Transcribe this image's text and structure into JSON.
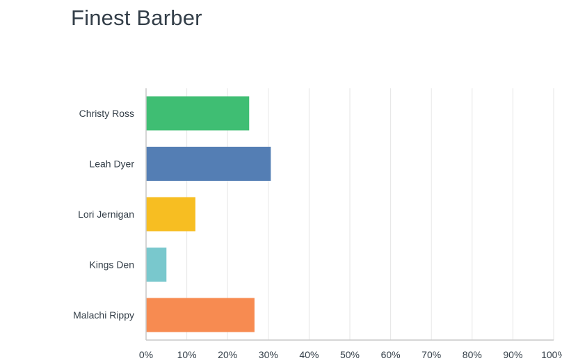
{
  "title": "Finest Barber",
  "chart_data": {
    "type": "bar",
    "orientation": "horizontal",
    "title": "Finest Barber",
    "categories": [
      "Christy Ross",
      "Leah Dyer",
      "Lori Jernigan",
      "Kings Den",
      "Malachi Rippy"
    ],
    "values": [
      25.3,
      30.6,
      12.1,
      5.0,
      26.6
    ],
    "unit": "%",
    "xlim": [
      0,
      100
    ],
    "xticks": [
      "0%",
      "10%",
      "20%",
      "30%",
      "40%",
      "50%",
      "60%",
      "70%",
      "80%",
      "90%",
      "100%"
    ],
    "colors": [
      "#3fbe73",
      "#547eb4",
      "#f7be22",
      "#79c8cd",
      "#f78b51"
    ],
    "grid": true,
    "legend": "none"
  }
}
